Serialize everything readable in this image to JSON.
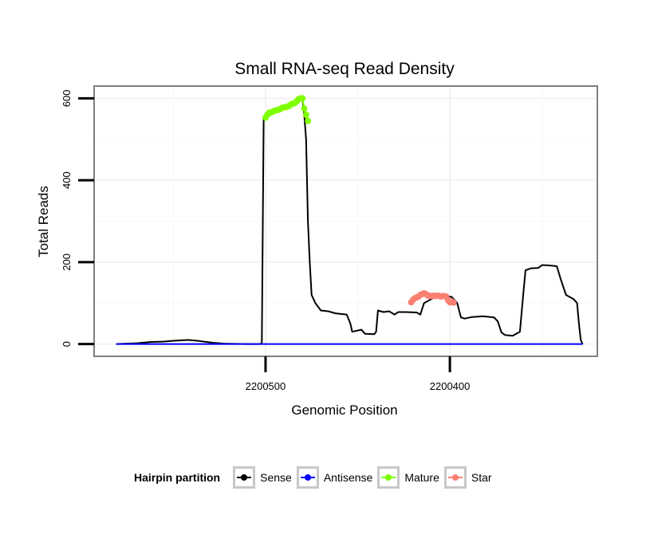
{
  "chart_data": {
    "type": "line",
    "title": "Small RNA-seq Read Density",
    "xlabel": "Genomic Position",
    "ylabel": "Total Reads",
    "x_ticks": [
      {
        "value": 2200500,
        "label": "2200500"
      },
      {
        "value": 2200400,
        "label": "2200400"
      }
    ],
    "x_reversed": true,
    "xlim": [
      2200593,
      2200320
    ],
    "y_ticks": [
      0,
      200,
      400,
      600
    ],
    "ylim": [
      -30,
      630
    ],
    "grid": true,
    "legend_position": "bottom",
    "legend_title": "Hairpin partition",
    "series": [
      {
        "name": "Sense",
        "color": "#000000",
        "markers": false,
        "points": [
          [
            2200581,
            0
          ],
          [
            2200570,
            2
          ],
          [
            2200562,
            5
          ],
          [
            2200555,
            6
          ],
          [
            2200550,
            8
          ],
          [
            2200546,
            9
          ],
          [
            2200542,
            10
          ],
          [
            2200537,
            8
          ],
          [
            2200532,
            5
          ],
          [
            2200528,
            3
          ],
          [
            2200522,
            1
          ],
          [
            2200510,
            0
          ],
          [
            2200503,
            0
          ],
          [
            2200502,
            3
          ],
          [
            2200501,
            550
          ],
          [
            2200500,
            555
          ],
          [
            2200480,
            600
          ],
          [
            2200479,
            560
          ],
          [
            2200478,
            500
          ],
          [
            2200477,
            300
          ],
          [
            2200476,
            200
          ],
          [
            2200475,
            120
          ],
          [
            2200473,
            100
          ],
          [
            2200470,
            82
          ],
          [
            2200466,
            80
          ],
          [
            2200462,
            75
          ],
          [
            2200456,
            72
          ],
          [
            2200454,
            50
          ],
          [
            2200453,
            30
          ],
          [
            2200448,
            35
          ],
          [
            2200446,
            25
          ],
          [
            2200441,
            24
          ],
          [
            2200440,
            30
          ],
          [
            2200439,
            82
          ],
          [
            2200436,
            78
          ],
          [
            2200433,
            80
          ],
          [
            2200430,
            72
          ],
          [
            2200428,
            78
          ],
          [
            2200424,
            78
          ],
          [
            2200418,
            77
          ],
          [
            2200416,
            72
          ],
          [
            2200414,
            100
          ],
          [
            2200410,
            110
          ],
          [
            2200406,
            120
          ],
          [
            2200399,
            115
          ],
          [
            2200396,
            100
          ],
          [
            2200394,
            65
          ],
          [
            2200392,
            62
          ],
          [
            2200388,
            66
          ],
          [
            2200382,
            68
          ],
          [
            2200376,
            65
          ],
          [
            2200374,
            55
          ],
          [
            2200372,
            28
          ],
          [
            2200370,
            22
          ],
          [
            2200366,
            20
          ],
          [
            2200364,
            25
          ],
          [
            2200362,
            30
          ],
          [
            2200360,
            130
          ],
          [
            2200359,
            180
          ],
          [
            2200356,
            185
          ],
          [
            2200352,
            186
          ],
          [
            2200350,
            193
          ],
          [
            2200346,
            192
          ],
          [
            2200342,
            190
          ],
          [
            2200340,
            160
          ],
          [
            2200337,
            120
          ],
          [
            2200333,
            110
          ],
          [
            2200331,
            100
          ],
          [
            2200330,
            50
          ],
          [
            2200329,
            10
          ],
          [
            2200328,
            0
          ]
        ]
      },
      {
        "name": "Antisense",
        "color": "#0000ff",
        "markers": false,
        "points": [
          [
            2200581,
            0
          ],
          [
            2200328,
            0
          ]
        ]
      },
      {
        "name": "Mature",
        "color": "#7fff00",
        "markers": true,
        "points": [
          [
            2200500,
            553
          ],
          [
            2200499,
            560
          ],
          [
            2200498,
            565
          ],
          [
            2200497,
            565
          ],
          [
            2200496,
            568
          ],
          [
            2200495,
            570
          ],
          [
            2200494,
            571
          ],
          [
            2200493,
            572
          ],
          [
            2200492,
            574
          ],
          [
            2200491,
            577
          ],
          [
            2200490,
            578
          ],
          [
            2200489,
            579
          ],
          [
            2200488,
            580
          ],
          [
            2200487,
            582
          ],
          [
            2200486,
            586
          ],
          [
            2200485,
            587
          ],
          [
            2200484,
            589
          ],
          [
            2200483,
            593
          ],
          [
            2200482,
            598
          ],
          [
            2200481,
            600
          ],
          [
            2200480,
            600
          ],
          [
            2200479,
            575
          ],
          [
            2200478,
            560
          ],
          [
            2200477,
            545
          ]
        ]
      },
      {
        "name": "Star",
        "color": "#fa8072",
        "markers": true,
        "points": [
          [
            2200421,
            102
          ],
          [
            2200420,
            108
          ],
          [
            2200419,
            112
          ],
          [
            2200418,
            114
          ],
          [
            2200417,
            116
          ],
          [
            2200416,
            120
          ],
          [
            2200415,
            122
          ],
          [
            2200414,
            124
          ],
          [
            2200413,
            122
          ],
          [
            2200412,
            118
          ],
          [
            2200411,
            118
          ],
          [
            2200410,
            117
          ],
          [
            2200409,
            118
          ],
          [
            2200408,
            117
          ],
          [
            2200407,
            118
          ],
          [
            2200406,
            118
          ],
          [
            2200405,
            116
          ],
          [
            2200404,
            117
          ],
          [
            2200403,
            117
          ],
          [
            2200402,
            116
          ],
          [
            2200401,
            107
          ],
          [
            2200400,
            102
          ],
          [
            2200399,
            104
          ],
          [
            2200398,
            101
          ]
        ]
      }
    ]
  }
}
